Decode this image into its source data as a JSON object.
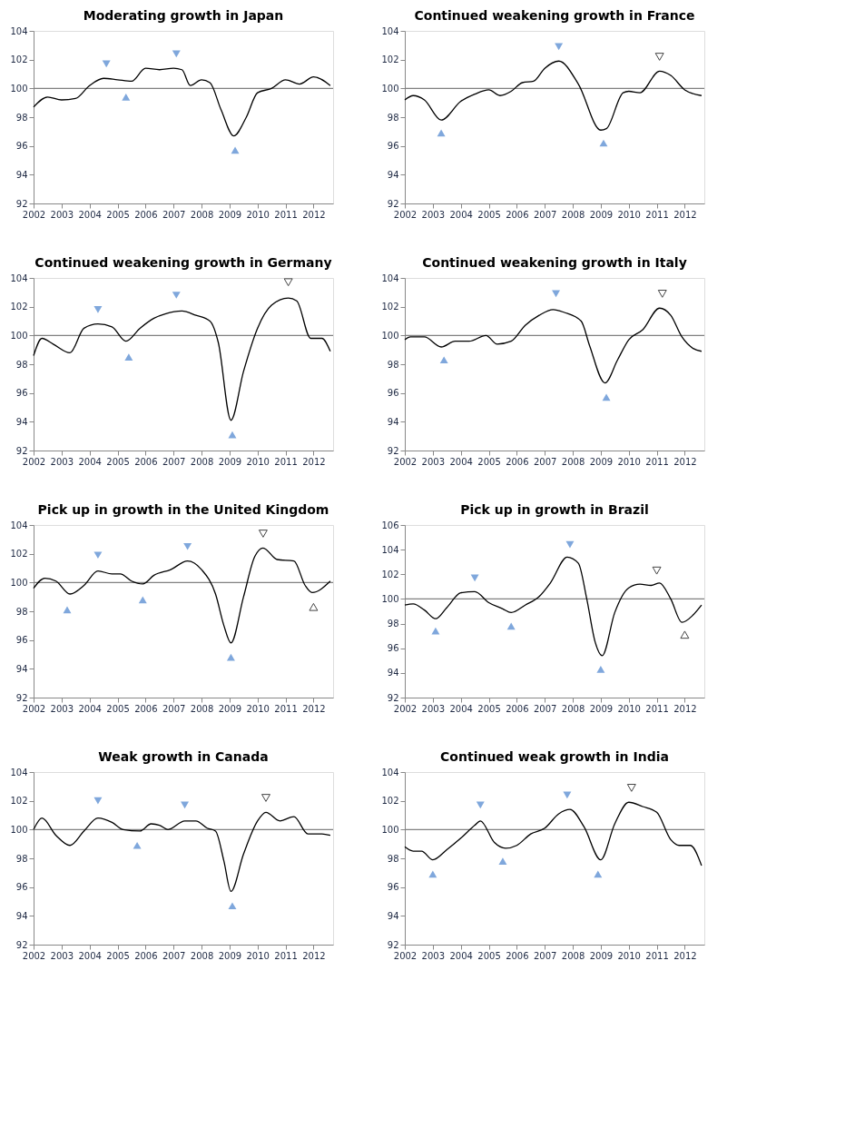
{
  "chart_data": [
    {
      "type": "line",
      "title": "Moderating growth in Japan",
      "xlim": [
        2002,
        2012.7
      ],
      "xticks": [
        2002,
        2003,
        2004,
        2005,
        2006,
        2007,
        2008,
        2009,
        2010,
        2011,
        2012
      ],
      "ylim": [
        92,
        104
      ],
      "yticks": [
        92,
        94,
        96,
        98,
        100,
        102,
        104
      ],
      "grid": false,
      "ref_lines": [
        {
          "axis": "y",
          "value": 100,
          "color": "#808080"
        }
      ],
      "series": [
        {
          "type": "line",
          "color": "#000000",
          "marker": "none",
          "x": [
            2002,
            2002.5,
            2003,
            2003.5,
            2004,
            2004.5,
            2005,
            2005.5,
            2006,
            2006.5,
            2007,
            2007.3,
            2007.6,
            2008,
            2008.3,
            2008.7,
            2009.15,
            2009.6,
            2010,
            2010.5,
            2011,
            2011.5,
            2012,
            2012.6
          ],
          "values": [
            98.7,
            99.4,
            99.2,
            99.3,
            100.2,
            100.7,
            100.6,
            100.5,
            101.4,
            101.3,
            101.4,
            101.3,
            100.2,
            100.6,
            100.4,
            98.5,
            96.7,
            98,
            99.7,
            100,
            100.6,
            100.3,
            100.8,
            100.2
          ]
        },
        {
          "type": "scatter",
          "color": "#7fa7dc",
          "marker": "triangle",
          "x": [
            2004.6,
            2007.1
          ],
          "values": [
            101.7,
            102.4
          ]
        },
        {
          "type": "scatter",
          "color": "#7fa7dc",
          "marker": "triangle",
          "x": [
            2005.3,
            2009.2
          ],
          "values": [
            99.4,
            95.7
          ]
        }
      ]
    },
    {
      "type": "line",
      "title": "Continued weakening growth in France",
      "xlim": [
        2002,
        2012.7
      ],
      "xticks": [
        2002,
        2003,
        2004,
        2005,
        2006,
        2007,
        2008,
        2009,
        2010,
        2011,
        2012
      ],
      "ylim": [
        92,
        104
      ],
      "yticks": [
        92,
        94,
        96,
        98,
        100,
        102,
        104
      ],
      "grid": false,
      "ref_lines": [
        {
          "axis": "y",
          "value": 100,
          "color": "#808080"
        }
      ],
      "series": [
        {
          "type": "line",
          "color": "#000000",
          "marker": "none",
          "x": [
            2002,
            2002.3,
            2002.7,
            2003.3,
            2004,
            2004.5,
            2005,
            2005.4,
            2005.8,
            2006.2,
            2006.6,
            2007,
            2007.5,
            2008.2,
            2009,
            2009.2,
            2009.8,
            2010,
            2010.4,
            2011.1,
            2011.5,
            2012,
            2012.6
          ],
          "values": [
            99.2,
            99.5,
            99.2,
            97.8,
            99.1,
            99.6,
            99.9,
            99.5,
            99.8,
            100.4,
            100.5,
            101.4,
            101.9,
            100.3,
            97.1,
            97.2,
            99.7,
            99.8,
            99.7,
            101.2,
            100.9,
            99.9,
            99.5
          ]
        },
        {
          "type": "scatter",
          "color": "#7fa7dc",
          "marker": "triangle",
          "x": [
            2007.5
          ],
          "values": [
            102.9
          ]
        },
        {
          "type": "scatter",
          "color": "#7fa7dc",
          "marker": "triangle",
          "x": [
            2003.3,
            2009.1
          ],
          "values": [
            96.9,
            96.2
          ]
        },
        {
          "type": "scatter",
          "color": "#ffffff",
          "marker": "triangle",
          "x": [
            2011.1
          ],
          "values": [
            102.2
          ]
        }
      ]
    },
    {
      "type": "line",
      "title": "Continued weakening growth in Germany",
      "xlim": [
        2002,
        2012.7
      ],
      "xticks": [
        2002,
        2003,
        2004,
        2005,
        2006,
        2007,
        2008,
        2009,
        2010,
        2011,
        2012
      ],
      "ylim": [
        92,
        104
      ],
      "yticks": [
        92,
        94,
        96,
        98,
        100,
        102,
        104
      ],
      "grid": false,
      "ref_lines": [
        {
          "axis": "y",
          "value": 100,
          "color": "#808080"
        }
      ],
      "series": [
        {
          "type": "line",
          "color": "#000000",
          "marker": "none",
          "x": [
            2002,
            2002.3,
            2002.7,
            2003.3,
            2003.8,
            2004.3,
            2004.8,
            2005.3,
            2005.8,
            2006.3,
            2006.7,
            2007.3,
            2007.8,
            2008.3,
            2008.6,
            2009.05,
            2009.5,
            2010,
            2010.5,
            2011.1,
            2011.4,
            2011.9,
            2012.3,
            2012.6
          ],
          "values": [
            98.6,
            99.8,
            99.4,
            98.8,
            100.5,
            100.8,
            100.6,
            99.6,
            100.5,
            101.2,
            101.5,
            101.7,
            101.4,
            101,
            99.5,
            94.1,
            97.5,
            100.5,
            102.1,
            102.6,
            102.4,
            99.8,
            99.8,
            98.9
          ]
        },
        {
          "type": "scatter",
          "color": "#7fa7dc",
          "marker": "triangle",
          "x": [
            2004.3,
            2007.1
          ],
          "values": [
            101.8,
            102.8
          ]
        },
        {
          "type": "scatter",
          "color": "#7fa7dc",
          "marker": "triangle",
          "x": [
            2005.4,
            2009.1
          ],
          "values": [
            98.5,
            93.1
          ]
        },
        {
          "type": "scatter",
          "color": "#ffffff",
          "marker": "triangle",
          "x": [
            2011.1
          ],
          "values": [
            103.7
          ]
        }
      ]
    },
    {
      "type": "line",
      "title": "Continued weakening growth in Italy",
      "xlim": [
        2002,
        2012.7
      ],
      "xticks": [
        2002,
        2003,
        2004,
        2005,
        2006,
        2007,
        2008,
        2009,
        2010,
        2011,
        2012
      ],
      "ylim": [
        92,
        104
      ],
      "yticks": [
        92,
        94,
        96,
        98,
        100,
        102,
        104
      ],
      "grid": false,
      "ref_lines": [
        {
          "axis": "y",
          "value": 100,
          "color": "#808080"
        }
      ],
      "series": [
        {
          "type": "line",
          "color": "#000000",
          "marker": "none",
          "x": [
            2002,
            2002.2,
            2002.7,
            2003.3,
            2003.8,
            2004.3,
            2004.9,
            2005.3,
            2005.8,
            2006.3,
            2006.8,
            2007.3,
            2007.7,
            2008.3,
            2008.6,
            2009.15,
            2009.6,
            2010,
            2010.5,
            2011.1,
            2011.5,
            2011.9,
            2012.3,
            2012.6
          ],
          "values": [
            99.7,
            99.9,
            99.9,
            99.2,
            99.6,
            99.6,
            100,
            99.4,
            99.6,
            100.7,
            101.4,
            101.8,
            101.6,
            101,
            99.3,
            96.7,
            98.3,
            99.7,
            100.4,
            101.9,
            101.4,
            99.9,
            99.1,
            98.9
          ]
        },
        {
          "type": "scatter",
          "color": "#7fa7dc",
          "marker": "triangle",
          "x": [
            2007.4
          ],
          "values": [
            102.9
          ]
        },
        {
          "type": "scatter",
          "color": "#7fa7dc",
          "marker": "triangle",
          "x": [
            2003.4,
            2009.2
          ],
          "values": [
            98.3,
            95.7
          ]
        },
        {
          "type": "scatter",
          "color": "#ffffff",
          "marker": "triangle",
          "x": [
            2011.2
          ],
          "values": [
            102.9
          ]
        }
      ]
    },
    {
      "type": "line",
      "title": "Pick up in growth in the United Kingdom",
      "xlim": [
        2002,
        2012.7
      ],
      "xticks": [
        2002,
        2003,
        2004,
        2005,
        2006,
        2007,
        2008,
        2009,
        2010,
        2011,
        2012
      ],
      "ylim": [
        92,
        104
      ],
      "yticks": [
        92,
        94,
        96,
        98,
        100,
        102,
        104
      ],
      "grid": false,
      "ref_lines": [
        {
          "axis": "y",
          "value": 100,
          "color": "#808080"
        }
      ],
      "series": [
        {
          "type": "line",
          "color": "#000000",
          "marker": "none",
          "x": [
            2002,
            2002.4,
            2002.8,
            2003.3,
            2003.8,
            2004.3,
            2004.8,
            2005.1,
            2005.5,
            2005.9,
            2006.3,
            2006.9,
            2007.5,
            2008,
            2008.5,
            2008.8,
            2009.05,
            2009.5,
            2009.9,
            2010.2,
            2010.7,
            2011.3,
            2011.7,
            2011.95,
            2012.6
          ],
          "values": [
            99.6,
            100.3,
            100.1,
            99.2,
            99.8,
            100.8,
            100.6,
            100.6,
            100.1,
            99.9,
            100.5,
            100.9,
            101.5,
            100.9,
            99.2,
            97,
            95.8,
            99,
            101.8,
            102.4,
            101.6,
            101.5,
            99.8,
            99.3,
            100.1
          ]
        },
        {
          "type": "scatter",
          "color": "#7fa7dc",
          "marker": "triangle",
          "x": [
            2004.3,
            2007.5
          ],
          "values": [
            101.9,
            102.5
          ]
        },
        {
          "type": "scatter",
          "color": "#7fa7dc",
          "marker": "triangle",
          "x": [
            2003.2,
            2005.9,
            2009.05
          ],
          "values": [
            98.1,
            98.8,
            94.8
          ]
        },
        {
          "type": "scatter",
          "color": "#ffffff",
          "marker": "triangle",
          "x": [
            2010.2
          ],
          "values": [
            103.4
          ]
        },
        {
          "type": "scatter",
          "color": "#ffffff",
          "marker": "triangle",
          "x": [
            2012
          ],
          "values": [
            98.3
          ]
        }
      ]
    },
    {
      "type": "line",
      "title": "Pick up in growth in Brazil",
      "xlim": [
        2002,
        2012.7
      ],
      "xticks": [
        2002,
        2003,
        2004,
        2005,
        2006,
        2007,
        2008,
        2009,
        2010,
        2011,
        2012
      ],
      "ylim": [
        92,
        106
      ],
      "yticks": [
        92,
        94,
        96,
        98,
        100,
        102,
        104,
        106
      ],
      "grid": false,
      "ref_lines": [
        {
          "axis": "y",
          "value": 100,
          "color": "#808080"
        }
      ],
      "series": [
        {
          "type": "line",
          "color": "#000000",
          "marker": "none",
          "x": [
            2002,
            2002.3,
            2002.7,
            2003.1,
            2003.5,
            2004,
            2004.5,
            2005,
            2005.5,
            2005.8,
            2006.3,
            2006.8,
            2007.2,
            2007.8,
            2008.2,
            2008.5,
            2008.8,
            2009.05,
            2009.5,
            2010,
            2010.4,
            2010.8,
            2011.1,
            2011.5,
            2011.9,
            2012.3,
            2012.6
          ],
          "values": [
            99.5,
            99.6,
            99.1,
            98.4,
            99.3,
            100.5,
            100.6,
            99.7,
            99.2,
            98.9,
            99.5,
            100.2,
            101.3,
            103.4,
            102.9,
            100,
            96.5,
            95.4,
            98.9,
            100.9,
            101.2,
            101.1,
            101.3,
            100,
            98.1,
            98.7,
            99.5
          ]
        },
        {
          "type": "scatter",
          "color": "#7fa7dc",
          "marker": "triangle",
          "x": [
            2004.5,
            2007.9
          ],
          "values": [
            101.7,
            104.4
          ]
        },
        {
          "type": "scatter",
          "color": "#7fa7dc",
          "marker": "triangle",
          "x": [
            2003.1,
            2005.8,
            2009
          ],
          "values": [
            97.4,
            97.8,
            94.3
          ]
        },
        {
          "type": "scatter",
          "color": "#ffffff",
          "marker": "triangle",
          "x": [
            2011
          ],
          "values": [
            102.3
          ]
        },
        {
          "type": "scatter",
          "color": "#ffffff",
          "marker": "triangle",
          "x": [
            2012
          ],
          "values": [
            97.1
          ]
        }
      ]
    },
    {
      "type": "line",
      "title": "Weak growth in Canada",
      "xlim": [
        2002,
        2012.7
      ],
      "xticks": [
        2002,
        2003,
        2004,
        2005,
        2006,
        2007,
        2008,
        2009,
        2010,
        2011,
        2012
      ],
      "ylim": [
        92,
        104
      ],
      "yticks": [
        92,
        94,
        96,
        98,
        100,
        102,
        104
      ],
      "grid": false,
      "ref_lines": [
        {
          "axis": "y",
          "value": 100,
          "color": "#808080"
        }
      ],
      "series": [
        {
          "type": "line",
          "color": "#000000",
          "marker": "none",
          "x": [
            2002,
            2002.3,
            2002.8,
            2003.3,
            2003.8,
            2004.3,
            2004.8,
            2005.2,
            2005.8,
            2006.2,
            2006.5,
            2006.8,
            2007.4,
            2007.8,
            2008.2,
            2008.5,
            2008.8,
            2009.05,
            2009.5,
            2010,
            2010.3,
            2010.8,
            2011.3,
            2011.8,
            2012.3,
            2012.6
          ],
          "values": [
            100,
            100.8,
            99.6,
            98.9,
            99.9,
            100.8,
            100.5,
            100,
            99.9,
            100.4,
            100.3,
            100,
            100.6,
            100.6,
            100.1,
            99.9,
            97.8,
            95.7,
            98.3,
            100.6,
            101.2,
            100.6,
            100.9,
            99.7,
            99.7,
            99.6
          ]
        },
        {
          "type": "scatter",
          "color": "#7fa7dc",
          "marker": "triangle",
          "x": [
            2004.3,
            2007.4
          ],
          "values": [
            102,
            101.7
          ]
        },
        {
          "type": "scatter",
          "color": "#7fa7dc",
          "marker": "triangle",
          "x": [
            2005.7,
            2009.1
          ],
          "values": [
            98.9,
            94.7
          ]
        },
        {
          "type": "scatter",
          "color": "#ffffff",
          "marker": "triangle",
          "x": [
            2010.3
          ],
          "values": [
            102.2
          ]
        }
      ]
    },
    {
      "type": "line",
      "title": "Continued weak growth in India",
      "xlim": [
        2002,
        2012.7
      ],
      "xticks": [
        2002,
        2003,
        2004,
        2005,
        2006,
        2007,
        2008,
        2009,
        2010,
        2011,
        2012
      ],
      "ylim": [
        92,
        104
      ],
      "yticks": [
        92,
        94,
        96,
        98,
        100,
        102,
        104
      ],
      "grid": false,
      "ref_lines": [
        {
          "axis": "y",
          "value": 100,
          "color": "#808080"
        }
      ],
      "series": [
        {
          "type": "line",
          "color": "#000000",
          "marker": "none",
          "x": [
            2002,
            2002.3,
            2002.6,
            2003,
            2003.5,
            2004,
            2004.5,
            2004.7,
            2005.2,
            2005.6,
            2006,
            2006.5,
            2007,
            2007.5,
            2007.9,
            2008.4,
            2009,
            2009.5,
            2010,
            2010.5,
            2011,
            2011.5,
            2011.8,
            2012.2,
            2012.6
          ],
          "values": [
            98.8,
            98.5,
            98.5,
            97.9,
            98.6,
            99.4,
            100.3,
            100.6,
            99.1,
            98.7,
            98.9,
            99.7,
            100.1,
            101.1,
            101.4,
            100.2,
            97.9,
            100.4,
            101.9,
            101.6,
            101.2,
            99.3,
            98.9,
            98.9,
            97.5
          ]
        },
        {
          "type": "scatter",
          "color": "#7fa7dc",
          "marker": "triangle",
          "x": [
            2004.7,
            2007.8
          ],
          "values": [
            101.7,
            102.4
          ]
        },
        {
          "type": "scatter",
          "color": "#7fa7dc",
          "marker": "triangle",
          "x": [
            2003,
            2005.5,
            2008.9
          ],
          "values": [
            96.9,
            97.8,
            96.9
          ]
        },
        {
          "type": "scatter",
          "color": "#ffffff",
          "marker": "triangle",
          "x": [
            2010.1
          ],
          "values": [
            102.9
          ]
        }
      ]
    }
  ]
}
